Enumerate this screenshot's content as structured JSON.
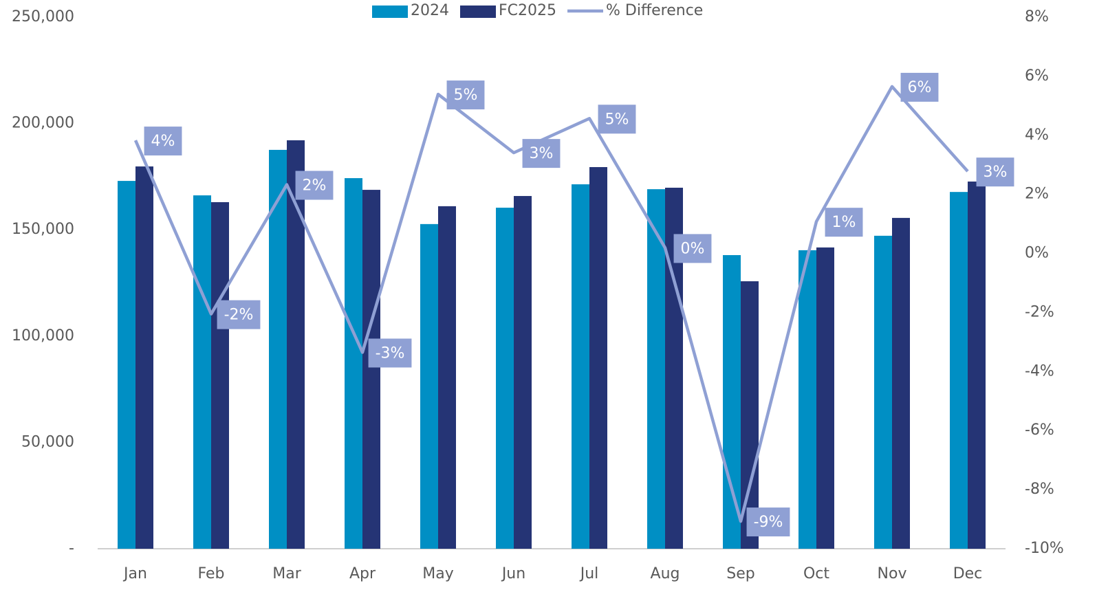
{
  "chart_data": {
    "type": "bar_line",
    "categories": [
      "Jan",
      "Feb",
      "Mar",
      "Apr",
      "May",
      "Jun",
      "Jul",
      "Aug",
      "Sep",
      "Oct",
      "Nov",
      "Dec"
    ],
    "series": [
      {
        "name": "2024",
        "type": "bar",
        "color": "#008fc4",
        "values": [
          173000,
          166200,
          187600,
          174300,
          152700,
          160400,
          171400,
          169100,
          138100,
          140400,
          147200,
          167800
        ]
      },
      {
        "name": "FC2025",
        "type": "bar",
        "color": "#253475",
        "values": [
          179800,
          163000,
          192100,
          168800,
          161100,
          165900,
          179500,
          169800,
          125800,
          141700,
          155600,
          172700
        ]
      },
      {
        "name": "% Difference",
        "type": "line",
        "axis": "y2",
        "color": "#8fa0d4",
        "values": [
          3.83,
          -2.05,
          2.33,
          -3.35,
          5.39,
          3.41,
          4.57,
          0.19,
          -9.07,
          1.08,
          5.65,
          2.78
        ],
        "value_labels": [
          "4%",
          "-2%",
          "2%",
          "-3%",
          "5%",
          "3%",
          "5%",
          "0%",
          "-9%",
          "1%",
          "6%",
          "3%"
        ]
      }
    ],
    "ylim": [
      0,
      250000
    ],
    "yticks": [
      {
        "value": 0,
        "label": "-"
      },
      {
        "value": 50000,
        "label": "50,000"
      },
      {
        "value": 100000,
        "label": "100,000"
      },
      {
        "value": 150000,
        "label": "150,000"
      },
      {
        "value": 200000,
        "label": "200,000"
      },
      {
        "value": 250000,
        "label": "250,000"
      }
    ],
    "y2lim": [
      -10,
      8
    ],
    "y2ticks": [
      {
        "value": -10,
        "label": "-10%"
      },
      {
        "value": -8,
        "label": "-8%"
      },
      {
        "value": -6,
        "label": "-6%"
      },
      {
        "value": -4,
        "label": "-4%"
      },
      {
        "value": -2,
        "label": "-2%"
      },
      {
        "value": 0,
        "label": "0%"
      },
      {
        "value": 2,
        "label": "2%"
      },
      {
        "value": 4,
        "label": "4%"
      },
      {
        "value": 6,
        "label": "6%"
      },
      {
        "value": 8,
        "label": "8%"
      }
    ],
    "legend": "top",
    "grid": false
  }
}
